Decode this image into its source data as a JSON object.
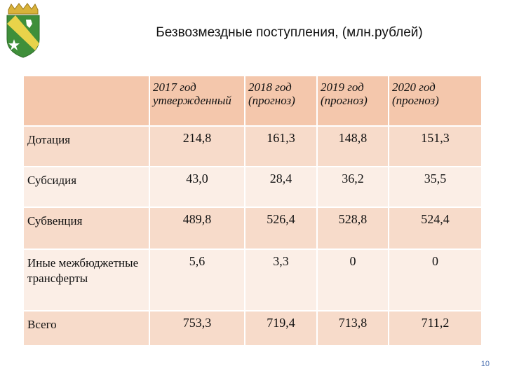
{
  "title": "Безвозмездные поступления, (млн.рублей)",
  "table": {
    "columns": [
      {
        "line1": "2017 год",
        "line2": "утвержденный"
      },
      {
        "line1": "2018 год",
        "line2": "(прогноз)"
      },
      {
        "line1": "2019 год",
        "line2": "(прогноз)"
      },
      {
        "line1": "2020 год",
        "line2": "(прогноз)"
      }
    ],
    "rows": [
      {
        "label": "Дотация",
        "values": [
          "214,8",
          "161,3",
          "148,8",
          "151,3"
        ]
      },
      {
        "label": "Субсидия",
        "values": [
          "43,0",
          "28,4",
          "36,2",
          "35,5"
        ]
      },
      {
        "label": "Субвенция",
        "values": [
          "489,8",
          "526,4",
          "528,8",
          "524,4"
        ]
      },
      {
        "label": "Иные межбюджетные трансферты",
        "values": [
          "5,6",
          "3,3",
          "0",
          "0"
        ]
      },
      {
        "label": "Всего",
        "values": [
          "753,3",
          "719,4",
          "713,8",
          "711,2"
        ]
      }
    ]
  },
  "page_number": "10",
  "colors": {
    "header_bg": "#f4c7ac",
    "row_dark": "#f7dbca",
    "row_light": "#fbeee6",
    "page_number": "#4a6fb0"
  }
}
